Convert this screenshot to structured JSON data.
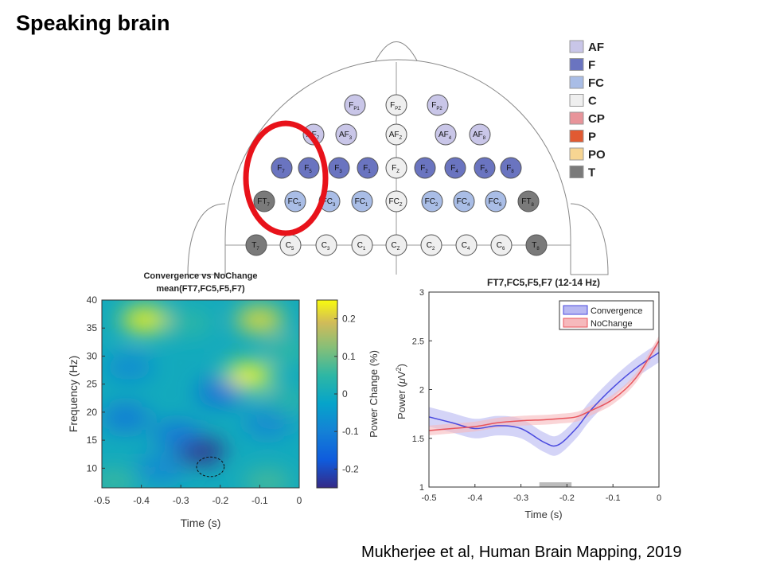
{
  "slide": {
    "title": "Speaking brain",
    "citation": "Mukherjee et al, Human Brain Mapping, 2019"
  },
  "montage": {
    "legend": [
      {
        "label": "AF",
        "color": "#c9c6e8"
      },
      {
        "label": "F",
        "color": "#6a74c0"
      },
      {
        "label": "FC",
        "color": "#a9bde6"
      },
      {
        "label": "C",
        "color": "#efefef"
      },
      {
        "label": "CP",
        "color": "#e8949a"
      },
      {
        "label": "P",
        "color": "#e15a32"
      },
      {
        "label": "PO",
        "color": "#f7d592"
      },
      {
        "label": "T",
        "color": "#7a7a7a"
      }
    ],
    "electrodes": [
      {
        "base": "F",
        "sub": "P1",
        "group": "AF",
        "row": 0,
        "col": 3
      },
      {
        "base": "F",
        "sub": "PZ",
        "group": "C",
        "row": 0,
        "col": 4
      },
      {
        "base": "F",
        "sub": "P2",
        "group": "AF",
        "row": 0,
        "col": 5
      },
      {
        "base": "AF",
        "sub": "7",
        "group": "AF",
        "row": 1,
        "col": 1
      },
      {
        "base": "AF",
        "sub": "3",
        "group": "AF",
        "row": 1,
        "col": 2
      },
      {
        "base": "AF",
        "sub": "Z",
        "group": "C",
        "row": 1,
        "col": 4
      },
      {
        "base": "AF",
        "sub": "4",
        "group": "AF",
        "row": 1,
        "col": 6
      },
      {
        "base": "AF",
        "sub": "8",
        "group": "AF",
        "row": 1,
        "col": 7
      },
      {
        "base": "F",
        "sub": "7",
        "group": "F",
        "row": 2,
        "col": 0
      },
      {
        "base": "F",
        "sub": "5",
        "group": "F",
        "row": 2,
        "col": 1
      },
      {
        "base": "F",
        "sub": "3",
        "group": "F",
        "row": 2,
        "col": 2
      },
      {
        "base": "F",
        "sub": "1",
        "group": "F",
        "row": 2,
        "col": 3
      },
      {
        "base": "F",
        "sub": "Z",
        "group": "C",
        "row": 2,
        "col": 4
      },
      {
        "base": "F",
        "sub": "2",
        "group": "F",
        "row": 2,
        "col": 5
      },
      {
        "base": "F",
        "sub": "4",
        "group": "F",
        "row": 2,
        "col": 6
      },
      {
        "base": "F",
        "sub": "6",
        "group": "F",
        "row": 2,
        "col": 7
      },
      {
        "base": "F",
        "sub": "8",
        "group": "F",
        "row": 2,
        "col": 8
      },
      {
        "base": "FT",
        "sub": "7",
        "group": "T",
        "row": 3,
        "col": 0
      },
      {
        "base": "FC",
        "sub": "5",
        "group": "FC",
        "row": 3,
        "col": 1
      },
      {
        "base": "FC",
        "sub": "3",
        "group": "FC",
        "row": 3,
        "col": 2
      },
      {
        "base": "FC",
        "sub": "1",
        "group": "FC",
        "row": 3,
        "col": 3
      },
      {
        "base": "FC",
        "sub": "Z",
        "group": "C",
        "row": 3,
        "col": 4
      },
      {
        "base": "FC",
        "sub": "2",
        "group": "FC",
        "row": 3,
        "col": 5
      },
      {
        "base": "FC",
        "sub": "4",
        "group": "FC",
        "row": 3,
        "col": 6
      },
      {
        "base": "FC",
        "sub": "6",
        "group": "FC",
        "row": 3,
        "col": 7
      },
      {
        "base": "FT",
        "sub": "8",
        "group": "T",
        "row": 3,
        "col": 8
      },
      {
        "base": "T",
        "sub": "7",
        "group": "T",
        "row": 4,
        "col": 0
      },
      {
        "base": "C",
        "sub": "5",
        "group": "C",
        "row": 4,
        "col": 1
      },
      {
        "base": "C",
        "sub": "3",
        "group": "C",
        "row": 4,
        "col": 2
      },
      {
        "base": "C",
        "sub": "1",
        "group": "C",
        "row": 4,
        "col": 3
      },
      {
        "base": "C",
        "sub": "Z",
        "group": "C",
        "row": 4,
        "col": 4
      },
      {
        "base": "C",
        "sub": "2",
        "group": "C",
        "row": 4,
        "col": 5
      },
      {
        "base": "C",
        "sub": "4",
        "group": "C",
        "row": 4,
        "col": 6
      },
      {
        "base": "C",
        "sub": "6",
        "group": "C",
        "row": 4,
        "col": 7
      },
      {
        "base": "T",
        "sub": "8",
        "group": "T",
        "row": 4,
        "col": 8
      }
    ],
    "highlight_color": "#e8121a"
  },
  "chart_data": [
    {
      "type": "heatmap",
      "title": "Convergence vs NoChange",
      "subtitle": "mean(FT7,FC5,F5,F7)",
      "xlabel": "Time (s)",
      "ylabel": "Frequency (Hz)",
      "xlim": [
        -0.5,
        0
      ],
      "ylim": [
        6.5,
        40
      ],
      "xticks": [
        -0.5,
        -0.4,
        -0.3,
        -0.2,
        -0.1,
        0
      ],
      "xtick_labels": [
        "-0.5",
        "-0.4",
        "-0.3",
        "-0.2",
        "-0.1",
        "0"
      ],
      "yticks": [
        10,
        15,
        20,
        25,
        30,
        35,
        40
      ],
      "ytick_labels": [
        "10",
        "15",
        "20",
        "25",
        "30",
        "35",
        "40"
      ],
      "colorbar": {
        "label": "Power Change (%)",
        "range": [
          -0.25,
          0.25
        ],
        "ticks": [
          -0.2,
          -0.1,
          0,
          0.1,
          0.2
        ],
        "tick_labels": [
          "-0.2",
          "-0.1",
          "0",
          "0.1",
          "0.2"
        ],
        "colormap": "parula"
      },
      "blobs": [
        {
          "t": -0.39,
          "f": 36.5,
          "value": 0.24
        },
        {
          "t": -0.1,
          "f": 36.5,
          "value": 0.22
        },
        {
          "t": -0.13,
          "f": 26.5,
          "value": 0.26
        },
        {
          "t": -0.03,
          "f": 31.0,
          "value": 0.05
        },
        {
          "t": -0.28,
          "f": 36.0,
          "value": 0.05
        },
        {
          "t": -0.25,
          "f": 13.0,
          "value": -0.25
        },
        {
          "t": -0.31,
          "f": 16.0,
          "value": -0.12
        },
        {
          "t": -0.44,
          "f": 19.0,
          "value": -0.12
        },
        {
          "t": -0.2,
          "f": 23.5,
          "value": -0.14
        },
        {
          "t": -0.43,
          "f": 28.0,
          "value": -0.08
        },
        {
          "t": -0.08,
          "f": 18.0,
          "value": -0.09
        },
        {
          "t": -0.35,
          "f": 10.0,
          "value": -0.09
        },
        {
          "t": -0.47,
          "f": 7.5,
          "value": 0.06
        },
        {
          "t": -0.08,
          "f": 7.5,
          "value": 0.07
        },
        {
          "t": -0.03,
          "f": 22.0,
          "value": 0.04
        }
      ],
      "significance_contour": {
        "t_range": [
          -0.26,
          -0.19
        ],
        "f_range": [
          8.5,
          12.0
        ]
      }
    },
    {
      "type": "line",
      "title": "FT7,FC5,F5,F7 (12-14 Hz)",
      "xlabel": "Time (s)",
      "ylabel": "Power (μV²)",
      "ylabel_base": "Power (",
      "ylabel_mu": "μ",
      "ylabel_unit": "V",
      "ylabel_exp": "2",
      "ylabel_end": ")",
      "xlim": [
        -0.5,
        0
      ],
      "ylim": [
        1,
        3
      ],
      "xticks": [
        -0.5,
        -0.4,
        -0.3,
        -0.2,
        -0.1,
        0
      ],
      "xtick_labels": [
        "-0.5",
        "-0.4",
        "-0.3",
        "-0.2",
        "-0.1",
        "0"
      ],
      "yticks": [
        1,
        1.5,
        2,
        2.5,
        3
      ],
      "ytick_labels": [
        "1",
        "1.5",
        "2",
        "2.5",
        "3"
      ],
      "legend_position": "top-right",
      "x": [
        -0.5,
        -0.45,
        -0.4,
        -0.35,
        -0.3,
        -0.25,
        -0.22,
        -0.18,
        -0.15,
        -0.1,
        -0.05,
        0
      ],
      "series": [
        {
          "name": "Convergence",
          "color": "#4a4adf",
          "band_color": "#b8b8f2",
          "values": [
            1.72,
            1.66,
            1.6,
            1.63,
            1.6,
            1.46,
            1.43,
            1.6,
            1.78,
            2.02,
            2.22,
            2.38
          ],
          "band": 0.1
        },
        {
          "name": "NoChange",
          "color": "#e8545c",
          "band_color": "#f6b9bc",
          "values": [
            1.58,
            1.6,
            1.62,
            1.66,
            1.68,
            1.69,
            1.7,
            1.72,
            1.78,
            1.9,
            2.12,
            2.5
          ],
          "band": 0.05
        }
      ],
      "significance_bar": {
        "x_range": [
          -0.26,
          -0.19
        ],
        "color": "#bbbbbb"
      }
    }
  ]
}
